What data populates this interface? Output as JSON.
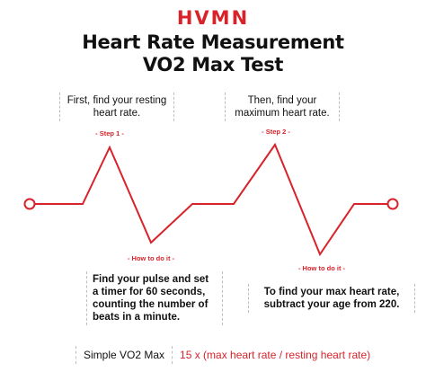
{
  "brand": {
    "logo_text": "HVMN"
  },
  "title": {
    "line1": "Heart Rate Measurement",
    "line2": "VO2 Max Test"
  },
  "notes": {
    "step1_text": "First, find your resting heart rate.",
    "step2_text": "Then, find your maximum heart rate.",
    "how1_text": "Find your pulse and set a timer for 60 seconds, counting the number of beats in a minute.",
    "how2_text": "To find your max heart rate, subtract your age from 220."
  },
  "labels": {
    "step1": "- Step 1 -",
    "step2": "- Step 2 -",
    "how1": "- How to do it -",
    "how2": "- How to do it -"
  },
  "formula": {
    "label": "Simple VO2 Max",
    "value": "15 x (max heart rate / resting heart rate)"
  },
  "colors": {
    "accent": "#d8232a",
    "text": "#111111",
    "dashed_border": "#bdbdbd"
  }
}
